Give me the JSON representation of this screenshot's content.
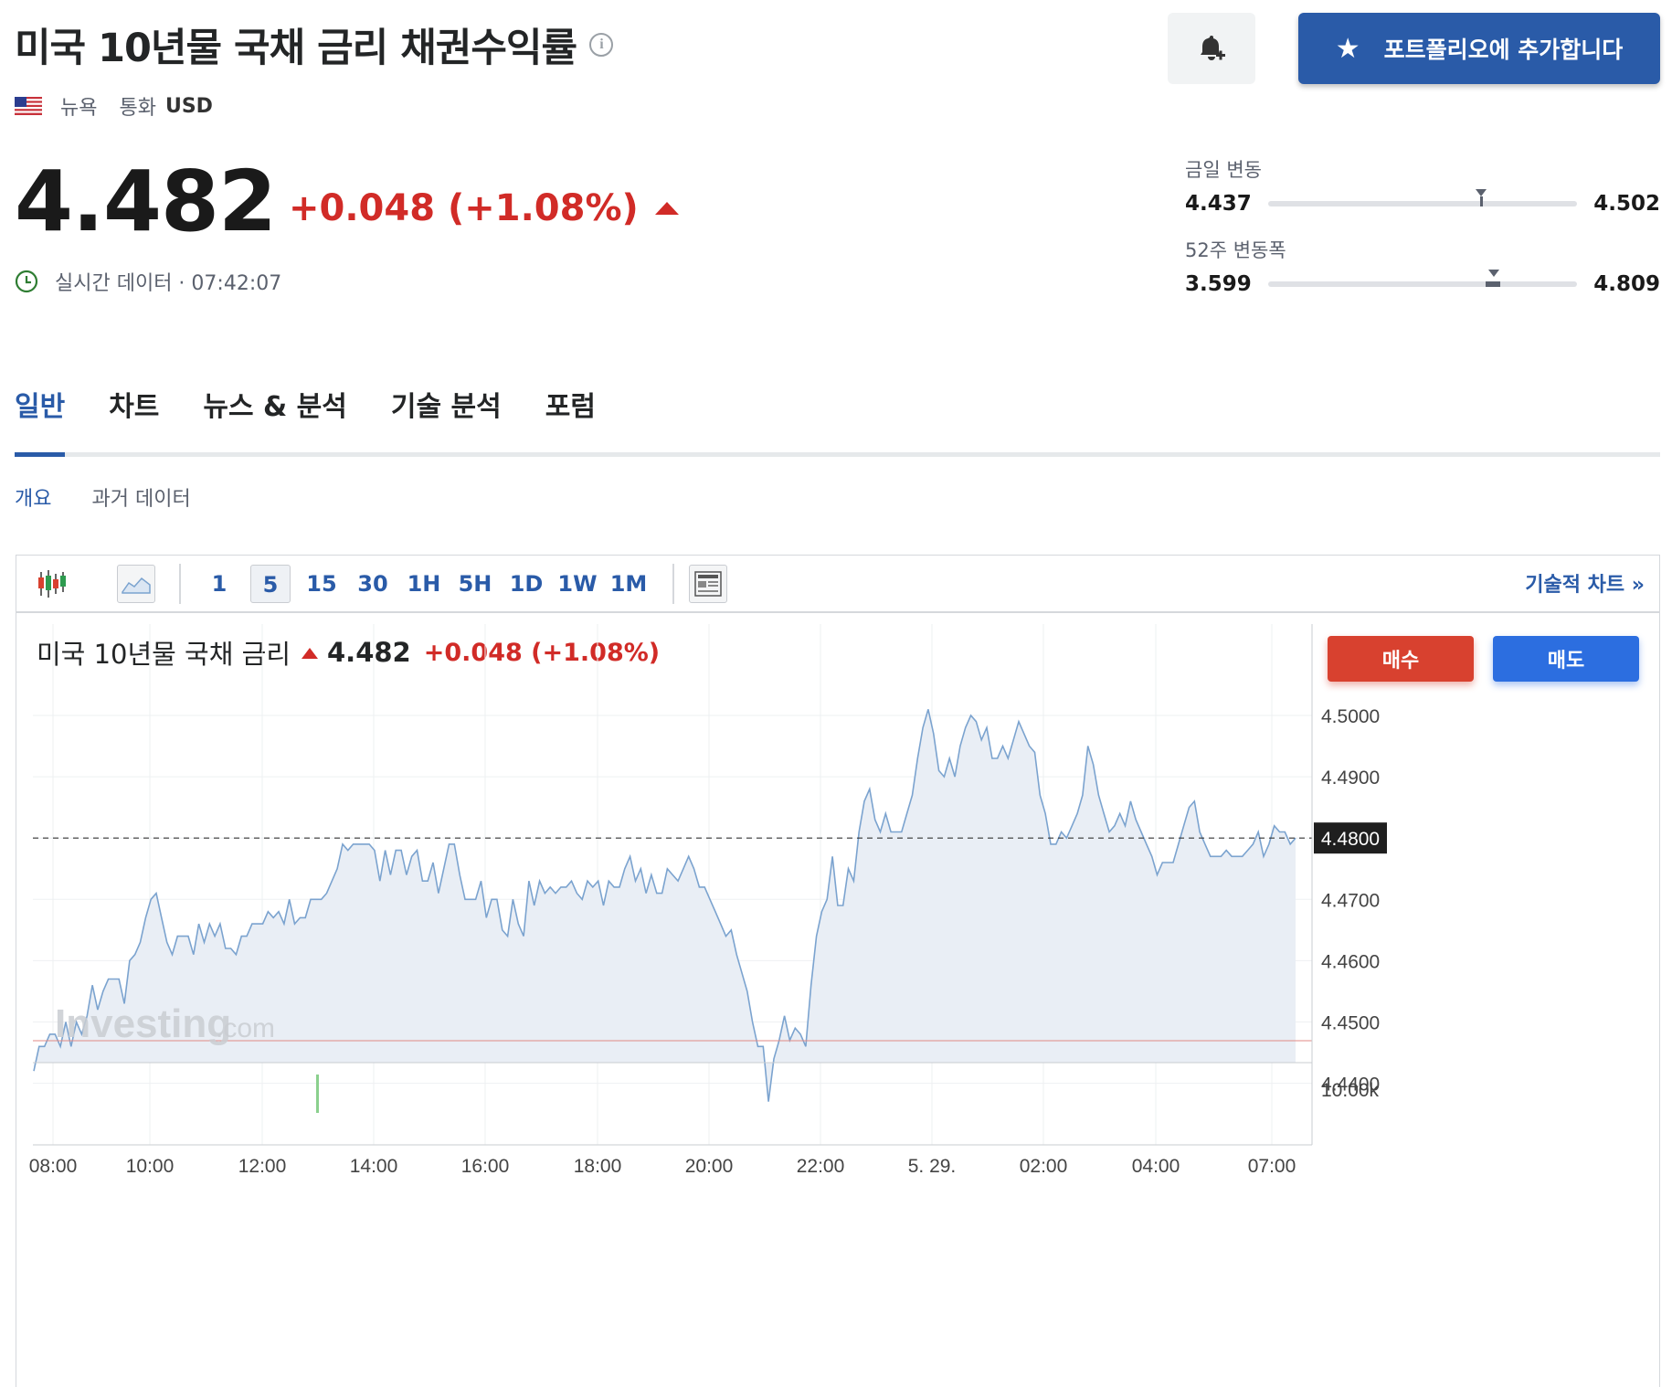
{
  "header": {
    "title": "미국 10년물 국채 금리 채권수익률",
    "location": "뉴욕",
    "currency_label": "통화",
    "currency": "USD",
    "portfolio_button": "포트폴리오에 추가합니다"
  },
  "quote": {
    "price": "4.482",
    "change": "+0.048 (+1.08%)",
    "realtime": "실시간 데이터 · 07:42:07"
  },
  "ranges": {
    "day": {
      "label": "금일 변동",
      "low": "4.437",
      "high": "4.502",
      "current": 0.69
    },
    "week52": {
      "label": "52주 변동폭",
      "low": "3.599",
      "high": "4.809",
      "current": 0.73
    }
  },
  "tabs": [
    {
      "label": "일반",
      "active": true
    },
    {
      "label": "차트",
      "active": false
    },
    {
      "label": "뉴스 & 분석",
      "active": false
    },
    {
      "label": "기술 분석",
      "active": false
    },
    {
      "label": "포럼",
      "active": false
    }
  ],
  "subtabs": [
    {
      "label": "개요",
      "active": true
    },
    {
      "label": "과거 데이터",
      "active": false
    }
  ],
  "toolbar": {
    "timeframes": [
      "1",
      "5",
      "15",
      "30",
      "1H",
      "5H",
      "1D",
      "1W",
      "1M"
    ],
    "active_timeframe": "5",
    "tech_chart_link": "기술적 차트 »"
  },
  "chart_header": {
    "name": "미국 10년물 국채 금리",
    "value": "4.482",
    "change": "+0.048 (+1.08%)",
    "buy": "매수",
    "sell": "매도"
  },
  "colors": {
    "accent": "#2a5ba8",
    "up": "#d12b27",
    "buy": "#d8412f",
    "sell": "#2c6ee0",
    "line": "#7ba3cf",
    "fill": "#e9eef5"
  },
  "chart_data": {
    "type": "area",
    "x_labels": [
      "08:00",
      "10:00",
      "12:00",
      "14:00",
      "16:00",
      "18:00",
      "20:00",
      "22:00",
      "5. 29.",
      "02:00",
      "04:00",
      "07:00"
    ],
    "y_ticks": [
      "4.5000",
      "4.4900",
      "4.4800",
      "4.4700",
      "4.4600",
      "4.4500",
      "4.4400"
    ],
    "ylim": [
      4.4327,
      4.5027
    ],
    "current_value_label": "4.4800",
    "reference_line": 4.48,
    "volume_label": "10.00k",
    "watermark_main": "Investing",
    "watermark_suffix": ".com",
    "values": [
      4.442,
      4.446,
      4.446,
      4.448,
      4.448,
      4.446,
      4.45,
      4.446,
      4.45,
      4.448,
      4.451,
      4.456,
      4.452,
      4.455,
      4.457,
      4.457,
      4.457,
      4.453,
      4.46,
      4.461,
      4.463,
      4.467,
      4.47,
      4.471,
      4.467,
      4.463,
      4.461,
      4.464,
      4.464,
      4.464,
      4.461,
      4.466,
      4.463,
      4.466,
      4.464,
      4.466,
      4.462,
      4.462,
      4.461,
      4.464,
      4.464,
      4.466,
      4.466,
      4.466,
      4.468,
      4.467,
      4.468,
      4.466,
      4.47,
      4.466,
      4.467,
      4.467,
      4.47,
      4.47,
      4.47,
      4.471,
      4.473,
      4.475,
      4.479,
      4.478,
      4.479,
      4.479,
      4.479,
      4.479,
      4.478,
      4.473,
      4.478,
      4.474,
      4.478,
      4.478,
      4.474,
      4.477,
      4.478,
      4.473,
      4.473,
      4.476,
      4.471,
      4.475,
      4.479,
      4.479,
      4.474,
      4.47,
      4.47,
      4.47,
      4.473,
      4.467,
      4.47,
      4.47,
      4.465,
      4.464,
      4.47,
      4.466,
      4.464,
      4.473,
      4.469,
      4.473,
      4.471,
      4.472,
      4.471,
      4.472,
      4.472,
      4.473,
      4.471,
      4.47,
      4.473,
      4.472,
      4.473,
      4.469,
      4.473,
      4.472,
      4.472,
      4.475,
      4.477,
      4.473,
      4.475,
      4.471,
      4.474,
      4.471,
      4.471,
      4.475,
      4.474,
      4.473,
      4.475,
      4.477,
      4.475,
      4.472,
      4.472,
      4.47,
      4.468,
      4.466,
      4.464,
      4.465,
      4.461,
      4.458,
      4.455,
      4.45,
      4.446,
      4.446,
      4.437,
      4.444,
      4.447,
      4.451,
      4.447,
      4.449,
      4.448,
      4.446,
      4.456,
      4.464,
      4.468,
      4.47,
      4.477,
      4.469,
      4.469,
      4.475,
      4.473,
      4.481,
      4.486,
      4.488,
      4.483,
      4.481,
      4.484,
      4.481,
      4.481,
      4.481,
      4.484,
      4.487,
      4.493,
      4.498,
      4.501,
      4.497,
      4.491,
      4.49,
      4.493,
      4.49,
      4.495,
      4.498,
      4.5,
      4.499,
      4.496,
      4.498,
      4.493,
      4.493,
      4.495,
      4.493,
      4.496,
      4.499,
      4.497,
      4.495,
      4.494,
      4.487,
      4.484,
      4.479,
      4.479,
      4.481,
      4.48,
      4.482,
      4.484,
      4.487,
      4.495,
      4.492,
      4.487,
      4.484,
      4.481,
      4.482,
      4.484,
      4.482,
      4.486,
      4.483,
      4.481,
      4.479,
      4.477,
      4.474,
      4.476,
      4.476,
      4.476,
      4.479,
      4.482,
      4.485,
      4.486,
      4.481,
      4.479,
      4.477,
      4.477,
      4.477,
      4.478,
      4.477,
      4.477,
      4.477,
      4.478,
      4.479,
      4.481,
      4.477,
      4.479,
      4.482,
      4.481,
      4.481,
      4.479,
      4.48
    ]
  }
}
